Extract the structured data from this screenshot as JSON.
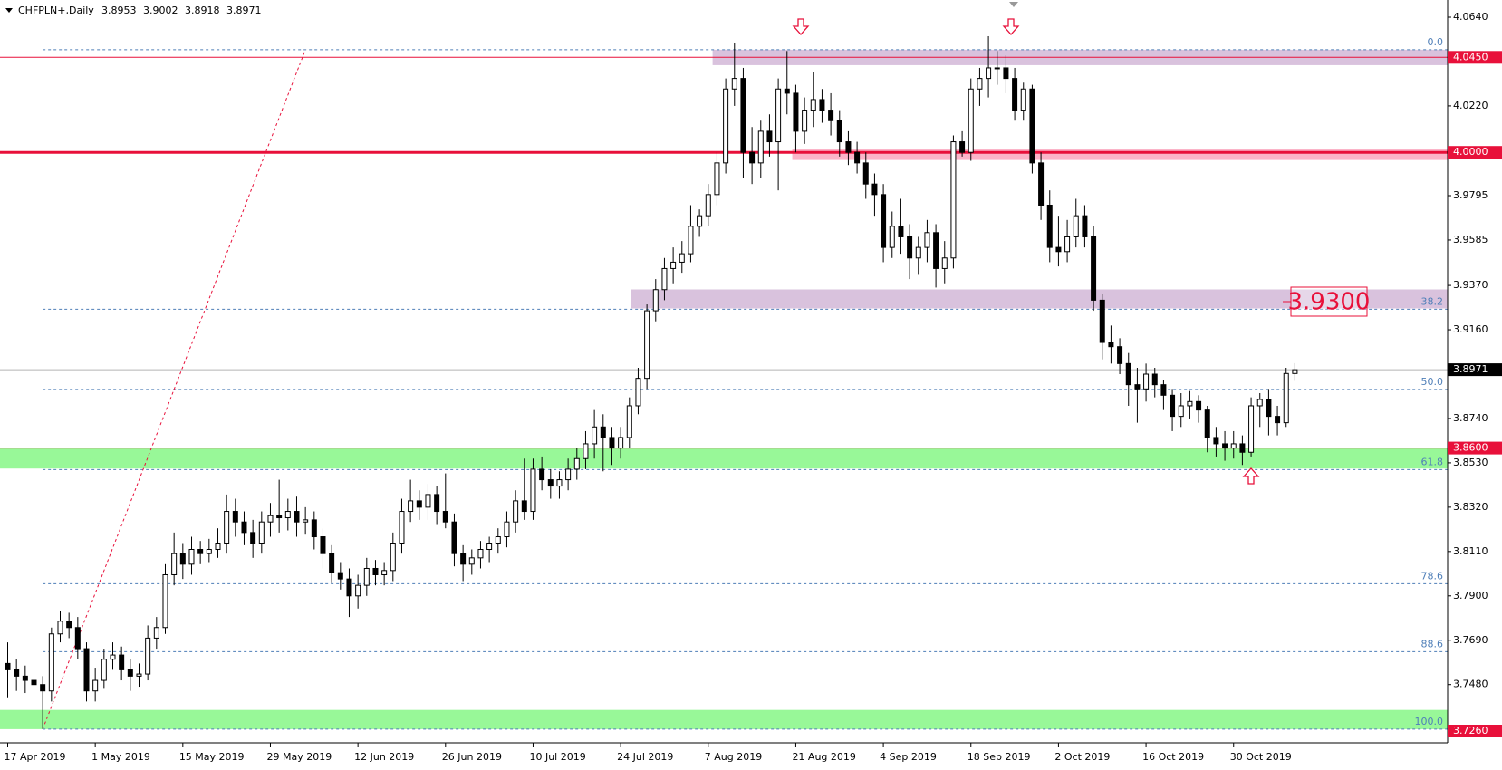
{
  "chart_data": {
    "type": "candlestick",
    "title": "CHFPLN+,Daily",
    "categories": [
      "17 Apr 2019",
      null,
      null,
      null,
      null,
      null,
      null,
      null,
      null,
      null,
      "1 May 2019",
      null,
      null,
      null,
      null,
      null,
      null,
      null,
      null,
      null,
      "15 May 2019",
      null,
      null,
      null,
      null,
      null,
      null,
      null,
      null,
      null,
      "29 May 2019",
      null,
      null,
      null,
      null,
      null,
      null,
      null,
      null,
      null,
      "12 Jun 2019",
      null,
      null,
      null,
      null,
      null,
      null,
      null,
      null,
      null,
      "26 Jun 2019",
      null,
      null,
      null,
      null,
      null,
      null,
      null,
      null,
      null,
      "10 Jul 2019",
      null,
      null,
      null,
      null,
      null,
      null,
      null,
      null,
      null,
      "24 Jul 2019",
      null,
      null,
      null,
      null,
      null,
      null,
      null,
      null,
      null,
      "7 Aug 2019",
      null,
      null,
      null,
      null,
      null,
      null,
      null,
      null,
      null,
      "21 Aug 2019",
      null,
      null,
      null,
      null,
      null,
      null,
      null,
      null,
      null,
      "4 Sep 2019",
      null,
      null,
      null,
      null,
      null,
      null,
      null,
      null,
      null,
      "18 Sep 2019",
      null,
      null,
      null,
      null,
      null,
      null,
      null,
      null,
      null,
      "2 Oct 2019",
      null,
      null,
      null,
      null,
      null,
      null,
      null,
      null,
      null,
      "16 Oct 2019",
      null,
      null,
      null,
      null,
      null,
      null,
      null,
      null,
      null,
      "30 Oct 2019",
      null,
      null,
      null,
      null,
      null,
      null,
      null
    ],
    "open": [
      3.758,
      3.755,
      3.752,
      3.75,
      3.748,
      3.745,
      3.772,
      3.778,
      3.775,
      3.765,
      3.745,
      3.75,
      3.76,
      3.762,
      3.755,
      3.752,
      3.753,
      3.77,
      3.775,
      3.8,
      3.81,
      3.805,
      3.812,
      3.81,
      3.812,
      3.815,
      3.83,
      3.825,
      3.82,
      3.815,
      3.825,
      3.828,
      3.827,
      3.83,
      3.825,
      3.826,
      3.818,
      3.81,
      3.801,
      3.798,
      3.79,
      3.795,
      3.803,
      3.8,
      3.802,
      3.815,
      3.83,
      3.835,
      3.832,
      3.838,
      3.83,
      3.825,
      3.81,
      3.805,
      3.808,
      3.812,
      3.815,
      3.818,
      3.825,
      3.835,
      3.83,
      3.85,
      3.845,
      3.842,
      3.845,
      3.85,
      3.855,
      3.862,
      3.87,
      3.865,
      3.86,
      3.865,
      3.88,
      3.893,
      3.925,
      3.935,
      3.945,
      3.948,
      3.952,
      3.965,
      3.97,
      3.98,
      3.995,
      4.03,
      4.035,
      4.0,
      3.995,
      4.01,
      4.005,
      4.03,
      4.028,
      4.01,
      4.02,
      4.025,
      4.02,
      4.015,
      4.005,
      4.0,
      3.995,
      3.985,
      3.98,
      3.955,
      3.965,
      3.96,
      3.95,
      3.955,
      3.962,
      3.945,
      3.95,
      4.005,
      4.0,
      4.03,
      4.035,
      4.04,
      4.04,
      4.035,
      4.02,
      4.03,
      3.995,
      3.975,
      3.955,
      3.953,
      3.96,
      3.97,
      3.96,
      3.93,
      3.91,
      3.908,
      3.9,
      3.89,
      3.888,
      3.895,
      3.89,
      3.885,
      3.875,
      3.88,
      3.882,
      3.878,
      3.865,
      3.862,
      3.86,
      3.862,
      3.858,
      3.88,
      3.883,
      3.875,
      3.872,
      3.8953
    ],
    "high": [
      3.768,
      3.76,
      3.757,
      3.754,
      3.752,
      3.775,
      3.783,
      3.782,
      3.78,
      3.768,
      3.756,
      3.765,
      3.768,
      3.766,
      3.76,
      3.758,
      3.776,
      3.78,
      3.805,
      3.82,
      3.815,
      3.818,
      3.816,
      3.817,
      3.822,
      3.838,
      3.836,
      3.83,
      3.826,
      3.83,
      3.834,
      3.845,
      3.836,
      3.837,
      3.832,
      3.83,
      3.822,
      3.814,
      3.806,
      3.803,
      3.8,
      3.808,
      3.807,
      3.806,
      3.82,
      3.836,
      3.845,
      3.84,
      3.843,
      3.842,
      3.848,
      3.829,
      3.814,
      3.812,
      3.816,
      3.818,
      3.822,
      3.83,
      3.84,
      3.855,
      3.855,
      3.856,
      3.85,
      3.849,
      3.855,
      3.86,
      3.868,
      3.878,
      3.876,
      3.87,
      3.87,
      3.884,
      3.898,
      3.928,
      3.94,
      3.95,
      3.955,
      3.958,
      3.975,
      3.973,
      3.985,
      4.0,
      4.035,
      4.052,
      4.04,
      4.012,
      4.015,
      4.018,
      4.035,
      4.048,
      4.032,
      4.026,
      4.038,
      4.03,
      4.028,
      4.02,
      4.01,
      4.005,
      4.0,
      3.99,
      3.985,
      3.972,
      3.978,
      3.966,
      3.96,
      3.968,
      3.966,
      3.958,
      4.008,
      4.01,
      4.035,
      4.04,
      4.055,
      4.048,
      4.046,
      4.04,
      4.033,
      4.032,
      4.0,
      3.982,
      3.97,
      3.968,
      3.978,
      3.975,
      3.965,
      3.933,
      3.918,
      3.912,
      3.905,
      3.898,
      3.9,
      3.898,
      3.892,
      3.888,
      3.886,
      3.887,
      3.885,
      3.88,
      3.87,
      3.868,
      3.868,
      3.866,
      3.884,
      3.886,
      3.888,
      3.88,
      3.898,
      3.9002
    ],
    "low": [
      3.742,
      3.745,
      3.744,
      3.741,
      3.727,
      3.74,
      3.768,
      3.77,
      3.76,
      3.74,
      3.74,
      3.746,
      3.755,
      3.75,
      3.745,
      3.747,
      3.75,
      3.765,
      3.772,
      3.795,
      3.798,
      3.8,
      3.805,
      3.806,
      3.808,
      3.81,
      3.818,
      3.814,
      3.808,
      3.81,
      3.818,
      3.82,
      3.821,
      3.818,
      3.819,
      3.812,
      3.803,
      3.796,
      3.793,
      3.78,
      3.784,
      3.79,
      3.795,
      3.795,
      3.797,
      3.81,
      3.825,
      3.826,
      3.826,
      3.824,
      3.822,
      3.804,
      3.797,
      3.8,
      3.803,
      3.806,
      3.81,
      3.813,
      3.82,
      3.826,
      3.826,
      3.84,
      3.836,
      3.836,
      3.84,
      3.845,
      3.85,
      3.855,
      3.849,
      3.852,
      3.855,
      3.86,
      3.876,
      3.888,
      3.92,
      3.93,
      3.938,
      3.943,
      3.948,
      3.96,
      3.965,
      3.975,
      3.99,
      4.022,
      3.988,
      3.985,
      3.988,
      3.998,
      3.982,
      4.018,
      4.0,
      4.004,
      4.012,
      4.014,
      4.008,
      3.998,
      3.994,
      3.99,
      3.978,
      3.97,
      3.948,
      3.95,
      3.952,
      3.94,
      3.942,
      3.948,
      3.936,
      3.938,
      3.945,
      3.998,
      3.996,
      4.022,
      4.026,
      4.032,
      4.028,
      4.015,
      4.015,
      3.99,
      3.968,
      3.948,
      3.946,
      3.948,
      3.955,
      3.955,
      3.925,
      3.902,
      3.9,
      3.895,
      3.88,
      3.872,
      3.882,
      3.884,
      3.878,
      3.868,
      3.87,
      3.874,
      3.872,
      3.858,
      3.856,
      3.854,
      3.855,
      3.852,
      3.856,
      3.87,
      3.866,
      3.866,
      3.87,
      3.8918
    ],
    "close": [
      3.755,
      3.752,
      3.75,
      3.748,
      3.745,
      3.772,
      3.778,
      3.775,
      3.765,
      3.745,
      3.75,
      3.76,
      3.762,
      3.755,
      3.752,
      3.753,
      3.77,
      3.775,
      3.8,
      3.81,
      3.805,
      3.812,
      3.81,
      3.812,
      3.815,
      3.83,
      3.825,
      3.82,
      3.815,
      3.825,
      3.828,
      3.827,
      3.83,
      3.825,
      3.826,
      3.818,
      3.81,
      3.801,
      3.798,
      3.79,
      3.795,
      3.803,
      3.8,
      3.802,
      3.815,
      3.83,
      3.835,
      3.832,
      3.838,
      3.83,
      3.825,
      3.81,
      3.805,
      3.808,
      3.812,
      3.815,
      3.818,
      3.825,
      3.835,
      3.83,
      3.85,
      3.845,
      3.842,
      3.845,
      3.85,
      3.855,
      3.862,
      3.87,
      3.865,
      3.86,
      3.865,
      3.88,
      3.893,
      3.925,
      3.935,
      3.945,
      3.948,
      3.952,
      3.965,
      3.97,
      3.98,
      3.995,
      4.03,
      4.035,
      4.0,
      3.995,
      4.01,
      4.005,
      4.03,
      4.028,
      4.01,
      4.02,
      4.025,
      4.02,
      4.015,
      4.005,
      4.0,
      3.995,
      3.985,
      3.98,
      3.955,
      3.965,
      3.96,
      3.95,
      3.955,
      3.962,
      3.945,
      3.95,
      4.005,
      4.0,
      4.03,
      4.035,
      4.04,
      4.04,
      4.035,
      4.02,
      4.03,
      3.995,
      3.975,
      3.955,
      3.953,
      3.96,
      3.97,
      3.96,
      3.93,
      3.91,
      3.908,
      3.9,
      3.89,
      3.888,
      3.895,
      3.89,
      3.885,
      3.875,
      3.88,
      3.882,
      3.878,
      3.865,
      3.862,
      3.86,
      3.862,
      3.858,
      3.88,
      3.883,
      3.875,
      3.872,
      3.8953,
      3.8971
    ],
    "up_color": "#ffffff",
    "down_color": "#000000",
    "ylim": [
      3.726,
      4.064
    ],
    "yticks": [
      {
        "value": 4.064,
        "label": "4.0640"
      },
      {
        "value": 4.022,
        "label": "4.0220"
      },
      3.9795,
      3.9585,
      {
        "value": 3.937,
        "label": "3.9370"
      },
      {
        "value": 3.916,
        "label": "3.9160"
      },
      {
        "value": 3.874,
        "label": "3.8740"
      },
      {
        "value": 3.853,
        "label": "3.8530"
      },
      {
        "value": 3.832,
        "label": "3.8320"
      },
      {
        "value": 3.811,
        "label": "3.8110"
      },
      {
        "value": 3.79,
        "label": "3.7900"
      },
      {
        "value": 3.769,
        "label": "3.7690"
      },
      {
        "value": 3.748,
        "label": "3.7480"
      }
    ],
    "grid": false,
    "level_color": "#e8103a",
    "levels": [
      {
        "value": 4.045,
        "label": "4.0450"
      },
      {
        "value": 4,
        "label": "4.0000"
      },
      {
        "value": 3.86,
        "label": "3.8600"
      },
      {
        "value": 3.726,
        "label": "3.7260"
      }
    ],
    "zones": [
      {
        "from": 4.0413,
        "to": 4.0486,
        "color": "#d9c2dd"
      },
      {
        "from": 3.9964,
        "to": 4.0018,
        "color": "#fbb4c8"
      },
      {
        "from": 3.9261,
        "to": 3.9351,
        "color": "#d9c2dd"
      },
      {
        "from": 3.8503,
        "to": 3.8598,
        "color": "#98f898"
      },
      {
        "from": 3.7269,
        "to": 3.736,
        "color": "#98f898"
      }
    ],
    "fibonacci": {
      "high": 4.0486,
      "low": 3.7269,
      "color": "#4f7fb8",
      "from": {
        "index": 4,
        "price": 3.7269
      },
      "to": {
        "index": 34,
        "price": 4.0486
      },
      "levels": [
        {
          "value": 0,
          "label": "0.0"
        },
        38.2,
        {
          "value": 50,
          "label": "50.0"
        },
        61.8,
        78.6,
        88.6,
        {
          "value": 100,
          "label": "100.0"
        }
      ]
    },
    "annotation": "3.9300"
  }
}
